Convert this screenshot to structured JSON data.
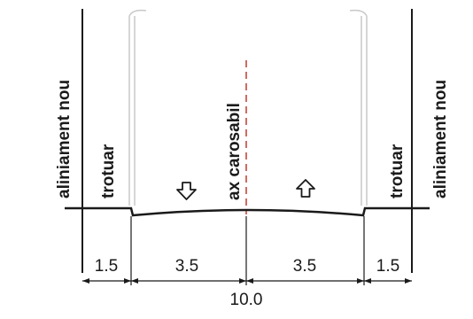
{
  "diagram": {
    "labels": {
      "left_alignment": "aliniament nou",
      "right_alignment": "aliniament nou",
      "left_sidewalk": "trotuar",
      "right_sidewalk": "trotuar",
      "axis": "ax carosabil"
    },
    "dimensions": {
      "left_sidewalk_width": "1.5",
      "left_lane_width": "3.5",
      "right_lane_width": "3.5",
      "right_sidewalk_width": "1.5",
      "total_width": "10.0"
    },
    "colors": {
      "line": "#1a1a1a",
      "axis": "#c0392b",
      "pole": "#c8c8c8"
    }
  }
}
